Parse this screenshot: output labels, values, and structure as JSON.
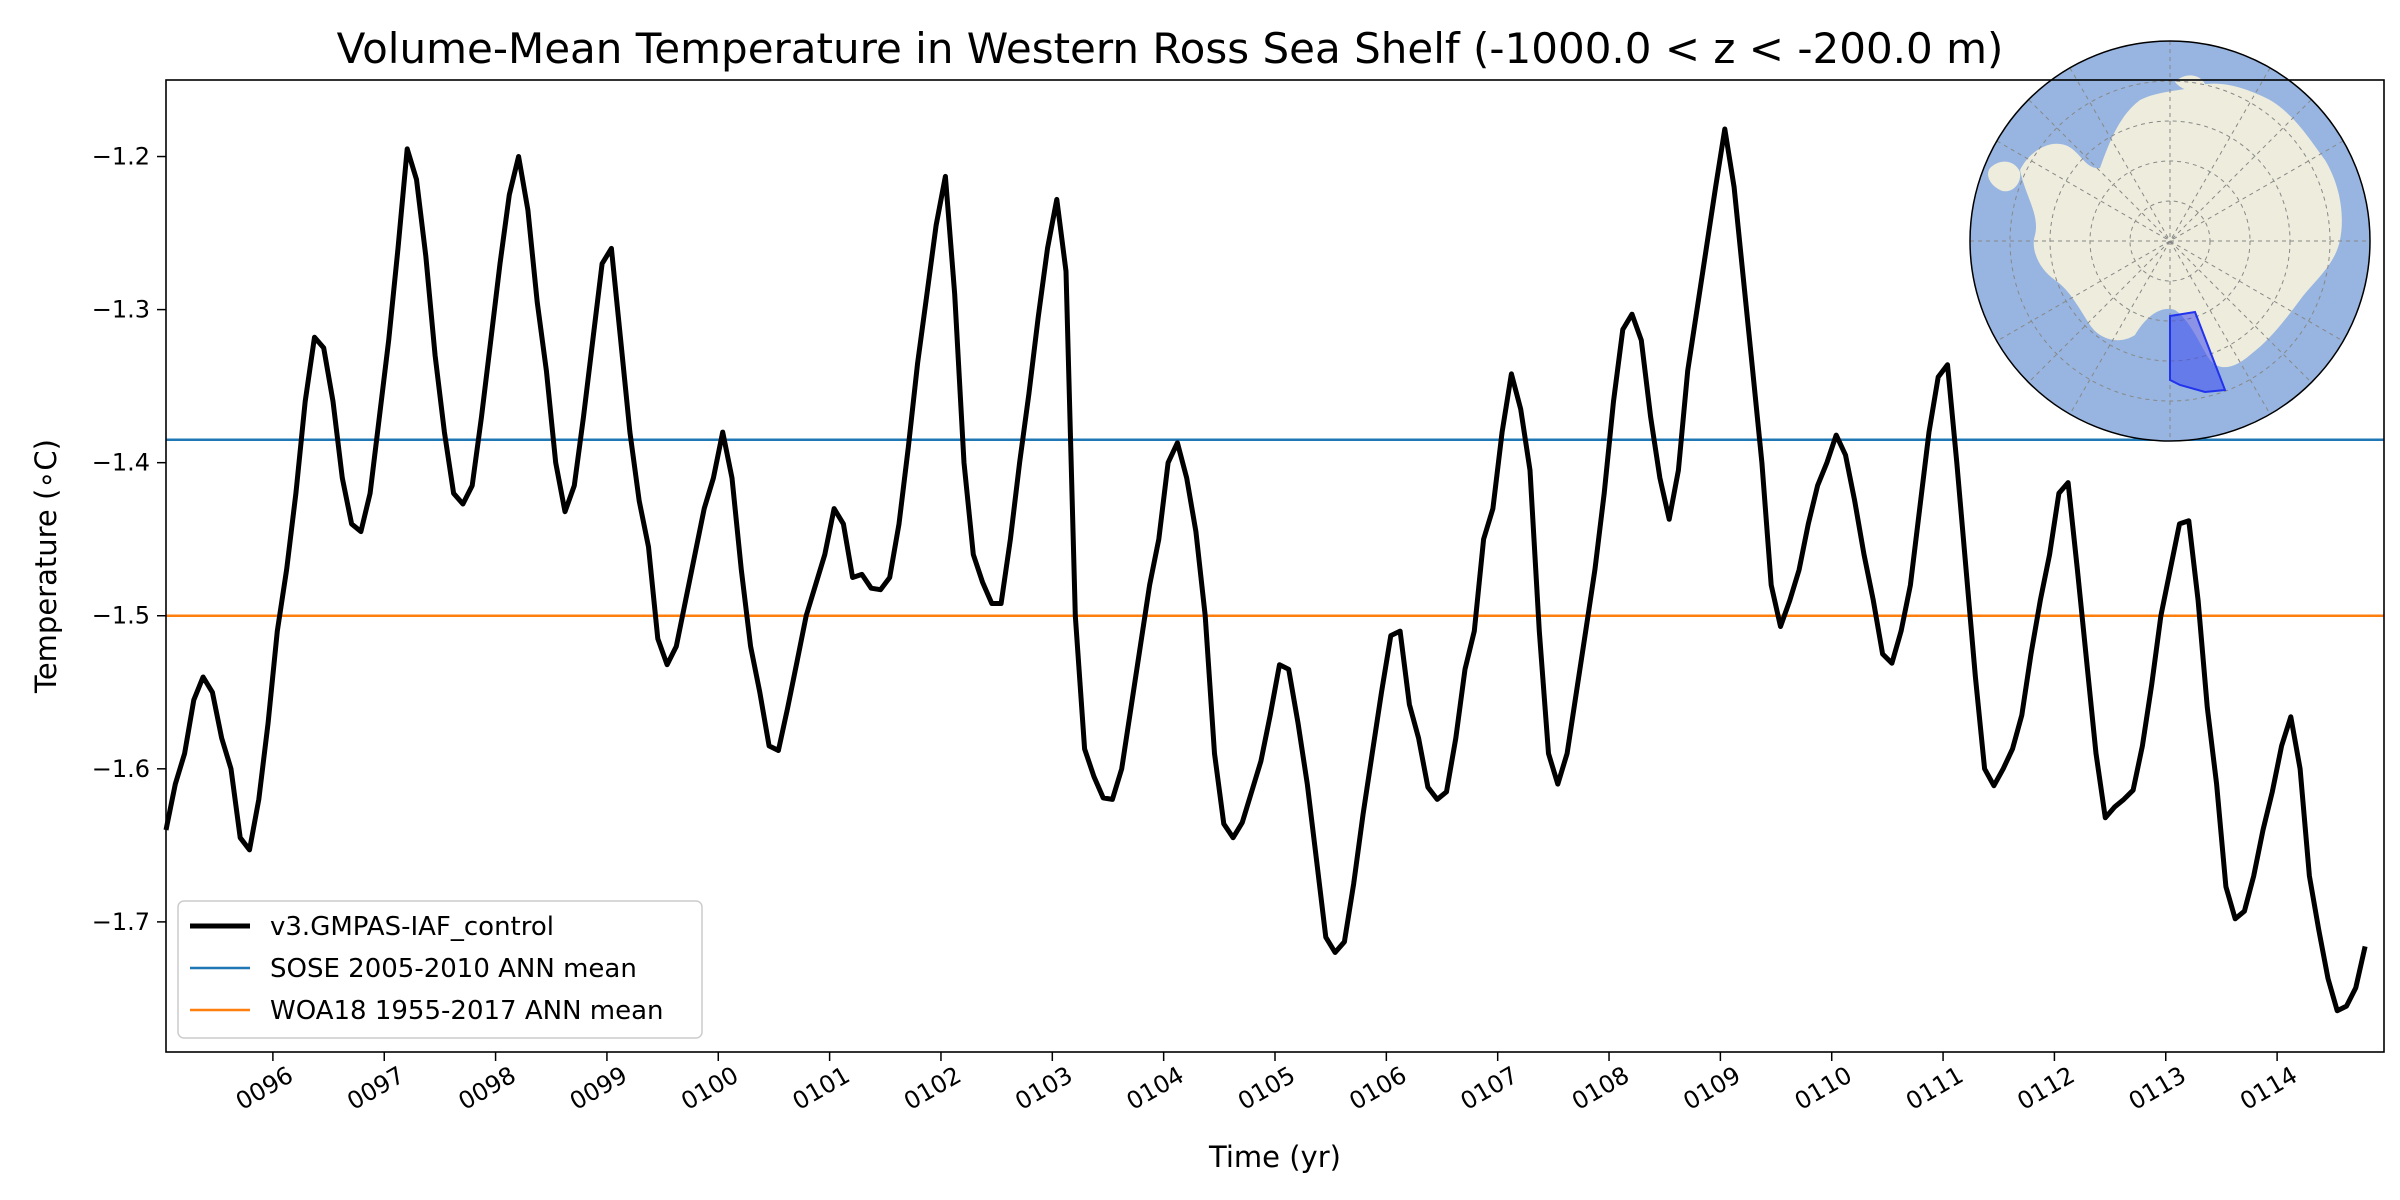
{
  "chart_data": {
    "type": "line",
    "title": "Volume-Mean Temperature in Western Ross Sea Shelf (-1000.0 < z < -200.0 m)",
    "xlabel": "Time (yr)",
    "ylabel": "Temperature (∘C)",
    "xlim": [
      95.04,
      114.96
    ],
    "ylim": [
      -1.785,
      -1.15
    ],
    "x_ticks": [
      96,
      97,
      98,
      99,
      100,
      101,
      102,
      103,
      104,
      105,
      106,
      107,
      108,
      109,
      110,
      111,
      112,
      113,
      114
    ],
    "x_tick_labels": [
      "0096",
      "0097",
      "0098",
      "0099",
      "0100",
      "0101",
      "0102",
      "0103",
      "0104",
      "0105",
      "0106",
      "0107",
      "0108",
      "0109",
      "0110",
      "0111",
      "0112",
      "0113",
      "0114"
    ],
    "y_ticks": [
      -1.2,
      -1.3,
      -1.4,
      -1.5,
      -1.6,
      -1.7
    ],
    "y_tick_labels": [
      "−1.2",
      "−1.3",
      "−1.4",
      "−1.5",
      "−1.6",
      "−1.7"
    ],
    "legend_position": "lower-left",
    "series": [
      {
        "name": "v3.GMPAS-IAF_control",
        "color": "#000000",
        "x_start": 95.04,
        "x_step": 0.0833333,
        "values": [
          -1.64,
          -1.61,
          -1.59,
          -1.555,
          -1.54,
          -1.55,
          -1.58,
          -1.6,
          -1.645,
          -1.653,
          -1.62,
          -1.57,
          -1.51,
          -1.47,
          -1.42,
          -1.36,
          -1.318,
          -1.325,
          -1.36,
          -1.41,
          -1.44,
          -1.445,
          -1.42,
          -1.37,
          -1.32,
          -1.26,
          -1.195,
          -1.215,
          -1.265,
          -1.33,
          -1.38,
          -1.42,
          -1.427,
          -1.415,
          -1.37,
          -1.32,
          -1.27,
          -1.225,
          -1.2,
          -1.235,
          -1.295,
          -1.34,
          -1.4,
          -1.432,
          -1.415,
          -1.37,
          -1.32,
          -1.27,
          -1.26,
          -1.32,
          -1.38,
          -1.425,
          -1.455,
          -1.515,
          -1.532,
          -1.52,
          -1.49,
          -1.46,
          -1.43,
          -1.41,
          -1.38,
          -1.41,
          -1.47,
          -1.52,
          -1.55,
          -1.585,
          -1.588,
          -1.56,
          -1.53,
          -1.5,
          -1.48,
          -1.46,
          -1.43,
          -1.44,
          -1.475,
          -1.473,
          -1.482,
          -1.483,
          -1.475,
          -1.44,
          -1.39,
          -1.335,
          -1.29,
          -1.245,
          -1.213,
          -1.29,
          -1.4,
          -1.46,
          -1.478,
          -1.492,
          -1.492,
          -1.45,
          -1.4,
          -1.355,
          -1.305,
          -1.26,
          -1.228,
          -1.275,
          -1.5,
          -1.587,
          -1.605,
          -1.619,
          -1.62,
          -1.6,
          -1.56,
          -1.52,
          -1.48,
          -1.45,
          -1.4,
          -1.387,
          -1.41,
          -1.445,
          -1.5,
          -1.59,
          -1.636,
          -1.645,
          -1.635,
          -1.615,
          -1.595,
          -1.565,
          -1.532,
          -1.535,
          -1.57,
          -1.61,
          -1.66,
          -1.71,
          -1.72,
          -1.713,
          -1.675,
          -1.63,
          -1.59,
          -1.55,
          -1.513,
          -1.51,
          -1.558,
          -1.58,
          -1.612,
          -1.62,
          -1.615,
          -1.58,
          -1.535,
          -1.51,
          -1.45,
          -1.43,
          -1.38,
          -1.342,
          -1.365,
          -1.405,
          -1.51,
          -1.59,
          -1.61,
          -1.59,
          -1.55,
          -1.51,
          -1.47,
          -1.42,
          -1.36,
          -1.313,
          -1.303,
          -1.32,
          -1.37,
          -1.41,
          -1.437,
          -1.405,
          -1.34,
          -1.3,
          -1.26,
          -1.22,
          -1.182,
          -1.22,
          -1.28,
          -1.34,
          -1.4,
          -1.48,
          -1.507,
          -1.49,
          -1.47,
          -1.44,
          -1.415,
          -1.4,
          -1.382,
          -1.395,
          -1.425,
          -1.46,
          -1.49,
          -1.525,
          -1.531,
          -1.51,
          -1.48,
          -1.43,
          -1.38,
          -1.344,
          -1.336,
          -1.4,
          -1.47,
          -1.54,
          -1.6,
          -1.611,
          -1.6,
          -1.587,
          -1.565,
          -1.525,
          -1.49,
          -1.46,
          -1.42,
          -1.413,
          -1.47,
          -1.53,
          -1.59,
          -1.632,
          -1.625,
          -1.62,
          -1.614,
          -1.585,
          -1.545,
          -1.5,
          -1.47,
          -1.44,
          -1.438,
          -1.49,
          -1.56,
          -1.61,
          -1.677,
          -1.698,
          -1.693,
          -1.67,
          -1.64,
          -1.615,
          -1.585,
          -1.566,
          -1.6,
          -1.67,
          -1.705,
          -1.737,
          -1.758,
          -1.755,
          -1.743,
          -1.716
        ]
      }
    ],
    "reference_lines": [
      {
        "name": "SOSE 2005-2010 ANN mean",
        "value": -1.385,
        "color": "#1f77b4"
      },
      {
        "name": "WOA18 1955-2017 ANN mean",
        "value": -1.5,
        "color": "#ff7f0e"
      }
    ],
    "inset_map": {
      "description_icon": "antarctica-polar-map-icon",
      "ocean_color": "#97b5e0",
      "land_color": "#eeecdc",
      "region_color": "#3d4bf0"
    }
  }
}
